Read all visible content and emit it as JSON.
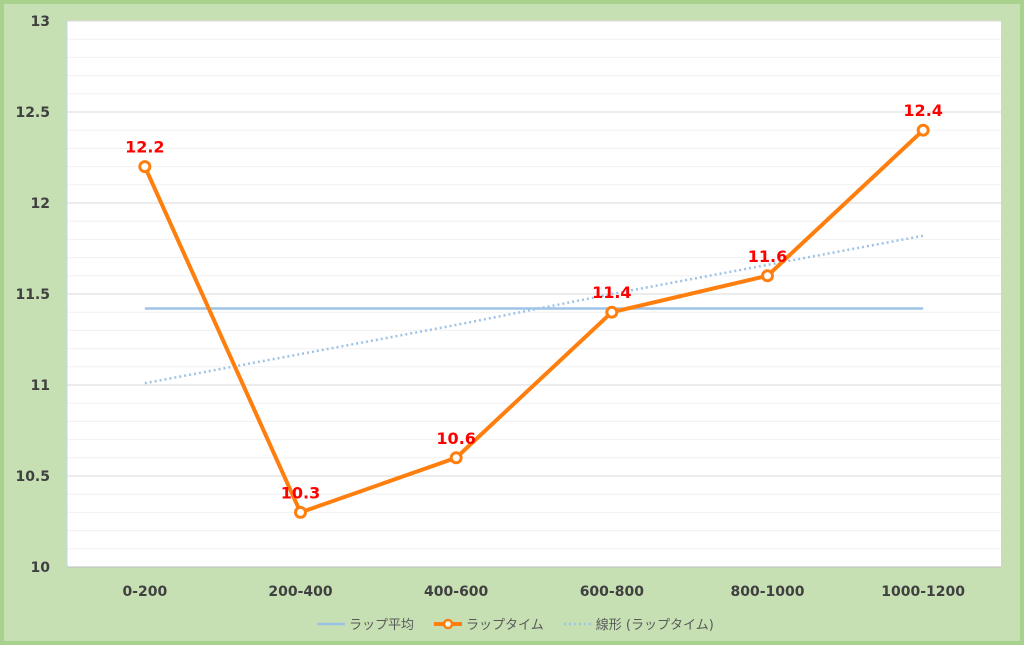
{
  "chart_data": {
    "type": "line",
    "categories": [
      "0-200",
      "200-400",
      "400-600",
      "600-800",
      "800-1000",
      "1000-1200"
    ],
    "ylim": [
      10,
      13
    ],
    "yticks": [
      "10",
      "10.5",
      "11",
      "11.5",
      "12",
      "12.5",
      "13"
    ],
    "grid": true,
    "legend_position": "bottom",
    "series": [
      {
        "name": "ラップ平均",
        "kind": "flat-line",
        "values": [
          11.42,
          11.42,
          11.42,
          11.42,
          11.42,
          11.42
        ],
        "color": "#9dc3e6"
      },
      {
        "name": "ラップタイム",
        "kind": "line-markers",
        "values": [
          12.2,
          10.3,
          10.6,
          11.4,
          11.6,
          12.4
        ],
        "labels": [
          "12.2",
          "10.3",
          "10.6",
          "11.4",
          "11.6",
          "12.4"
        ],
        "color": "#ff7f0e"
      },
      {
        "name": "線形 (ラップタイム)",
        "kind": "trendline",
        "values": [
          11.01,
          11.17,
          11.33,
          11.5,
          11.66,
          11.82
        ],
        "color": "#9dc3e6"
      }
    ]
  },
  "colors": {
    "background": "#c6e0b4",
    "plot_background": "#ffffff",
    "gridline": "#d9d9d9",
    "label_red": "#ff0000"
  }
}
